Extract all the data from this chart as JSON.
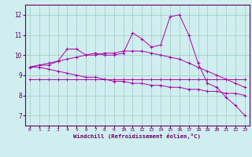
{
  "title": "Windchill (Refroidissement éolien,°C)",
  "background_color": "#d0eef0",
  "line_color": "#aa00aa",
  "grid_color": "#99ccbb",
  "x_ticks": [
    0,
    1,
    2,
    3,
    4,
    5,
    6,
    7,
    8,
    9,
    10,
    11,
    12,
    13,
    14,
    15,
    16,
    17,
    18,
    19,
    20,
    21,
    22,
    23
  ],
  "ylim": [
    6.5,
    12.5
  ],
  "yticks": [
    7,
    8,
    9,
    10,
    11,
    12
  ],
  "series": [
    [
      9.4,
      9.5,
      9.5,
      9.7,
      10.3,
      10.3,
      10.0,
      10.1,
      10.0,
      10.0,
      10.1,
      11.1,
      10.8,
      10.4,
      10.5,
      11.9,
      12.0,
      11.0,
      9.6,
      8.6,
      8.4,
      7.9,
      7.5,
      7.0
    ],
    [
      9.4,
      9.5,
      9.6,
      9.7,
      9.8,
      9.9,
      10.0,
      10.0,
      10.1,
      10.1,
      10.2,
      10.2,
      10.2,
      10.1,
      10.0,
      9.9,
      9.8,
      9.6,
      9.4,
      9.2,
      9.0,
      8.8,
      8.6,
      8.4
    ],
    [
      9.4,
      9.4,
      9.3,
      9.2,
      9.1,
      9.0,
      8.9,
      8.9,
      8.8,
      8.7,
      8.7,
      8.6,
      8.6,
      8.5,
      8.5,
      8.4,
      8.4,
      8.3,
      8.3,
      8.2,
      8.2,
      8.1,
      8.1,
      8.0
    ],
    [
      8.8,
      8.8,
      8.8,
      8.8,
      8.8,
      8.8,
      8.8,
      8.8,
      8.8,
      8.8,
      8.8,
      8.8,
      8.8,
      8.8,
      8.8,
      8.8,
      8.8,
      8.8,
      8.8,
      8.8,
      8.8,
      8.8,
      8.8,
      8.8
    ]
  ],
  "spine_color": "#660066",
  "tick_color": "#660066",
  "label_color": "#660066",
  "xlabel_color": "#660066"
}
